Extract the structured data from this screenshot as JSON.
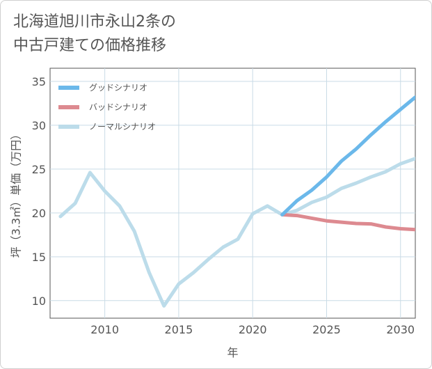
{
  "title_lines": [
    "北海道旭川市永山2条の",
    "中古戸建ての価格推移"
  ],
  "chart_data": {
    "type": "line",
    "xlabel": "年",
    "ylabel": "坪（3.3㎡）単価（万円）",
    "xlim": [
      2006.3,
      2031
    ],
    "ylim": [
      8,
      36.5
    ],
    "xticks": [
      2010,
      2015,
      2020,
      2025,
      2030
    ],
    "yticks": [
      10,
      15,
      20,
      25,
      30,
      35
    ],
    "grid": true,
    "legend_position": "top-left",
    "series": [
      {
        "name": "グッドシナリオ",
        "color": "#6bb8ea",
        "x": [
          2022,
          2023,
          2024,
          2025,
          2026,
          2027,
          2028,
          2029,
          2030,
          2031
        ],
        "y": [
          19.8,
          21.4,
          22.6,
          24.1,
          25.9,
          27.3,
          28.9,
          30.4,
          31.8,
          33.2
        ]
      },
      {
        "name": "バッドシナリオ",
        "color": "#dd8a90",
        "x": [
          2022,
          2023,
          2024,
          2025,
          2026,
          2027,
          2028,
          2029,
          2030,
          2031
        ],
        "y": [
          19.8,
          19.7,
          19.4,
          19.1,
          18.95,
          18.8,
          18.75,
          18.4,
          18.2,
          18.1
        ]
      },
      {
        "name": "ノーマルシナリオ",
        "color": "#bcdcea",
        "x": [
          2007,
          2008,
          2009,
          2010,
          2011,
          2012,
          2013,
          2014,
          2015,
          2016,
          2017,
          2018,
          2019,
          2020,
          2021,
          2022,
          2023,
          2024,
          2025,
          2026,
          2027,
          2028,
          2029,
          2030,
          2031
        ],
        "y": [
          19.6,
          21.1,
          24.6,
          22.5,
          20.8,
          17.9,
          13.2,
          9.4,
          11.9,
          13.2,
          14.7,
          16.1,
          17.0,
          19.9,
          20.8,
          19.8,
          20.3,
          21.2,
          21.8,
          22.8,
          23.4,
          24.1,
          24.7,
          25.6,
          26.2
        ]
      }
    ]
  }
}
